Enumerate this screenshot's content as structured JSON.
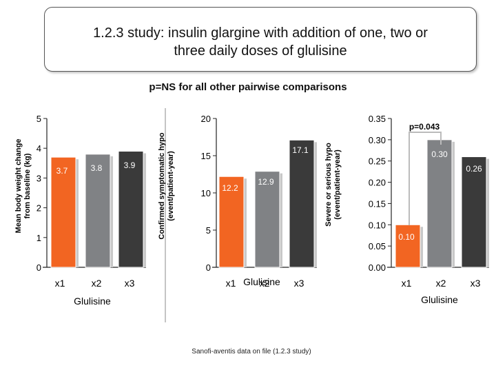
{
  "title": "1.2.3 study: insulin glargine with addition of one, two or\nthree daily doses of glulisine",
  "subtitle": "p=NS for all other pairwise comparisons",
  "source": "Sanofi-aventis data on file (1.2.3 study)",
  "colors": {
    "x1": "#f26522",
    "x2": "#808285",
    "x3": "#3a3a3a"
  },
  "chart_data": [
    {
      "type": "bar",
      "categories": [
        "x1",
        "x2",
        "x3"
      ],
      "group_label": "Glulisine",
      "ylabel": [
        "Mean body weight change",
        "from baseline (kg)"
      ],
      "ylim": [
        0,
        5
      ],
      "yticks": [
        "0",
        "1",
        "2",
        "3",
        "4",
        "5"
      ],
      "values": [
        3.7,
        3.8,
        3.9
      ],
      "labels": [
        "3.7",
        "3.8",
        "3.9"
      ],
      "grid": false
    },
    {
      "type": "bar",
      "categories": [
        "x1",
        "x2",
        "x3"
      ],
      "group_label": "Glulisine",
      "ylabel": [
        "Confirmed symptomatic hypo",
        "(event/patient-year)"
      ],
      "ylim": [
        0,
        20
      ],
      "yticks": [
        "0",
        "5",
        "10",
        "15",
        "20"
      ],
      "values": [
        12.2,
        12.9,
        17.1
      ],
      "labels": [
        "12.2",
        "12.9",
        "17.1"
      ],
      "grid": false
    },
    {
      "type": "bar",
      "categories": [
        "x1",
        "x2",
        "x3"
      ],
      "group_label": "Glulisine",
      "ylabel": [
        "Severe or serious hypo",
        "(event/patient-year)"
      ],
      "ylim": [
        0,
        0.35
      ],
      "yticks": [
        "0.00",
        "0.05",
        "0.10",
        "0.15",
        "0.20",
        "0.25",
        "0.30",
        "0.35"
      ],
      "values": [
        0.1,
        0.3,
        0.26
      ],
      "labels": [
        "0.10",
        "0.30",
        "0.26"
      ],
      "annotation": "p=0.043",
      "grid": false
    }
  ]
}
